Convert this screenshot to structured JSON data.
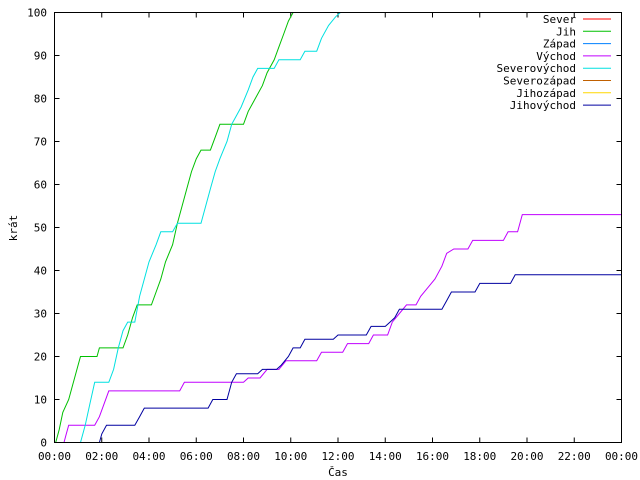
{
  "chart_data": {
    "type": "line",
    "title": "",
    "xlabel": "Čas",
    "ylabel": "krát",
    "xlim": [
      0,
      24
    ],
    "ylim": [
      0,
      100
    ],
    "grid": false,
    "legend_position": "top-right",
    "x_unit": "hours",
    "x_ticks": [
      {
        "value": 0,
        "label": "00:00"
      },
      {
        "value": 2,
        "label": "02:00"
      },
      {
        "value": 4,
        "label": "04:00"
      },
      {
        "value": 6,
        "label": "06:00"
      },
      {
        "value": 8,
        "label": "08:00"
      },
      {
        "value": 10,
        "label": "10:00"
      },
      {
        "value": 12,
        "label": "12:00"
      },
      {
        "value": 14,
        "label": "14:00"
      },
      {
        "value": 16,
        "label": "16:00"
      },
      {
        "value": 18,
        "label": "18:00"
      },
      {
        "value": 20,
        "label": "20:00"
      },
      {
        "value": 22,
        "label": "22:00"
      },
      {
        "value": 24,
        "label": "00:00"
      }
    ],
    "y_ticks": [
      {
        "value": 0,
        "label": "0"
      },
      {
        "value": 10,
        "label": "10"
      },
      {
        "value": 20,
        "label": "20"
      },
      {
        "value": 30,
        "label": "30"
      },
      {
        "value": 40,
        "label": "40"
      },
      {
        "value": 50,
        "label": "50"
      },
      {
        "value": 60,
        "label": "60"
      },
      {
        "value": 70,
        "label": "70"
      },
      {
        "value": 80,
        "label": "80"
      },
      {
        "value": 90,
        "label": "90"
      },
      {
        "value": 100,
        "label": "100"
      }
    ],
    "series": [
      {
        "name": "Sever",
        "color": "#ff0000",
        "points": []
      },
      {
        "name": "Jih",
        "color": "#00c000",
        "points": [
          [
            0.05,
            0
          ],
          [
            0.2,
            3
          ],
          [
            0.35,
            7
          ],
          [
            0.6,
            10
          ],
          [
            0.8,
            14
          ],
          [
            1.0,
            18
          ],
          [
            1.1,
            20
          ],
          [
            1.8,
            20
          ],
          [
            1.9,
            22
          ],
          [
            2.9,
            22
          ],
          [
            3.1,
            25
          ],
          [
            3.3,
            29
          ],
          [
            3.5,
            32
          ],
          [
            4.1,
            32
          ],
          [
            4.3,
            35
          ],
          [
            4.5,
            38
          ],
          [
            4.7,
            42
          ],
          [
            5.0,
            46
          ],
          [
            5.2,
            51
          ],
          [
            5.4,
            55
          ],
          [
            5.6,
            59
          ],
          [
            5.8,
            63
          ],
          [
            6.0,
            66
          ],
          [
            6.2,
            68
          ],
          [
            6.6,
            68
          ],
          [
            6.8,
            71
          ],
          [
            7.0,
            74
          ],
          [
            8.0,
            74
          ],
          [
            8.2,
            77
          ],
          [
            8.5,
            80
          ],
          [
            8.8,
            83
          ],
          [
            9.0,
            86
          ],
          [
            9.3,
            89
          ],
          [
            9.5,
            92
          ],
          [
            9.7,
            95
          ],
          [
            9.9,
            98
          ],
          [
            10.1,
            100
          ]
        ]
      },
      {
        "name": "Západ",
        "color": "#0080ff",
        "points": []
      },
      {
        "name": "Východ",
        "color": "#c000ff",
        "points": [
          [
            0.4,
            0
          ],
          [
            0.5,
            2
          ],
          [
            0.6,
            4
          ],
          [
            1.7,
            4
          ],
          [
            1.9,
            6
          ],
          [
            2.1,
            9
          ],
          [
            2.3,
            12
          ],
          [
            5.3,
            12
          ],
          [
            5.5,
            14
          ],
          [
            8.0,
            14
          ],
          [
            8.2,
            15
          ],
          [
            8.7,
            15
          ],
          [
            9.0,
            17
          ],
          [
            9.5,
            17
          ],
          [
            9.8,
            19
          ],
          [
            11.1,
            19
          ],
          [
            11.3,
            21
          ],
          [
            12.2,
            21
          ],
          [
            12.4,
            23
          ],
          [
            13.3,
            23
          ],
          [
            13.5,
            25
          ],
          [
            14.1,
            25
          ],
          [
            14.3,
            28
          ],
          [
            14.6,
            30
          ],
          [
            14.9,
            32
          ],
          [
            15.3,
            32
          ],
          [
            15.5,
            34
          ],
          [
            15.8,
            36
          ],
          [
            16.1,
            38
          ],
          [
            16.4,
            41
          ],
          [
            16.6,
            44
          ],
          [
            16.9,
            45
          ],
          [
            17.5,
            45
          ],
          [
            17.7,
            47
          ],
          [
            19.0,
            47
          ],
          [
            19.2,
            49
          ],
          [
            19.6,
            49
          ],
          [
            19.8,
            53
          ],
          [
            24.0,
            53
          ]
        ]
      },
      {
        "name": "Severovýchod",
        "color": "#00e0e0",
        "points": [
          [
            1.1,
            0
          ],
          [
            1.3,
            4
          ],
          [
            1.5,
            9
          ],
          [
            1.7,
            14
          ],
          [
            2.3,
            14
          ],
          [
            2.5,
            17
          ],
          [
            2.7,
            22
          ],
          [
            2.9,
            26
          ],
          [
            3.1,
            28
          ],
          [
            3.4,
            28
          ],
          [
            3.6,
            34
          ],
          [
            3.8,
            38
          ],
          [
            4.0,
            42
          ],
          [
            4.3,
            46
          ],
          [
            4.5,
            49
          ],
          [
            5.0,
            49
          ],
          [
            5.2,
            51
          ],
          [
            6.2,
            51
          ],
          [
            6.4,
            55
          ],
          [
            6.6,
            59
          ],
          [
            6.8,
            63
          ],
          [
            7.0,
            66
          ],
          [
            7.3,
            70
          ],
          [
            7.5,
            74
          ],
          [
            7.7,
            76
          ],
          [
            7.9,
            78
          ],
          [
            8.2,
            82
          ],
          [
            8.4,
            85
          ],
          [
            8.6,
            87
          ],
          [
            9.3,
            87
          ],
          [
            9.5,
            89
          ],
          [
            10.4,
            89
          ],
          [
            10.6,
            91
          ],
          [
            11.1,
            91
          ],
          [
            11.3,
            94
          ],
          [
            11.6,
            97
          ],
          [
            11.9,
            99
          ],
          [
            12.1,
            100
          ]
        ]
      },
      {
        "name": "Severozápad",
        "color": "#c06000",
        "points": []
      },
      {
        "name": "Jihozápad",
        "color": "#ffd700",
        "points": []
      },
      {
        "name": "Jihovýchod",
        "color": "#0000a0",
        "points": [
          [
            1.9,
            0
          ],
          [
            2.0,
            2
          ],
          [
            2.2,
            4
          ],
          [
            3.4,
            4
          ],
          [
            3.6,
            6
          ],
          [
            3.8,
            8
          ],
          [
            6.5,
            8
          ],
          [
            6.7,
            10
          ],
          [
            7.3,
            10
          ],
          [
            7.5,
            14
          ],
          [
            7.7,
            16
          ],
          [
            8.6,
            16
          ],
          [
            8.8,
            17
          ],
          [
            9.4,
            17
          ],
          [
            9.6,
            18
          ],
          [
            9.9,
            20
          ],
          [
            10.1,
            22
          ],
          [
            10.4,
            22
          ],
          [
            10.6,
            24
          ],
          [
            11.8,
            24
          ],
          [
            12.0,
            25
          ],
          [
            13.2,
            25
          ],
          [
            13.4,
            27
          ],
          [
            14.0,
            27
          ],
          [
            14.2,
            28
          ],
          [
            14.4,
            29
          ],
          [
            14.6,
            31
          ],
          [
            16.4,
            31
          ],
          [
            16.6,
            33
          ],
          [
            16.8,
            35
          ],
          [
            17.8,
            35
          ],
          [
            18.0,
            37
          ],
          [
            19.3,
            37
          ],
          [
            19.5,
            39
          ],
          [
            24.0,
            39
          ]
        ]
      }
    ]
  }
}
